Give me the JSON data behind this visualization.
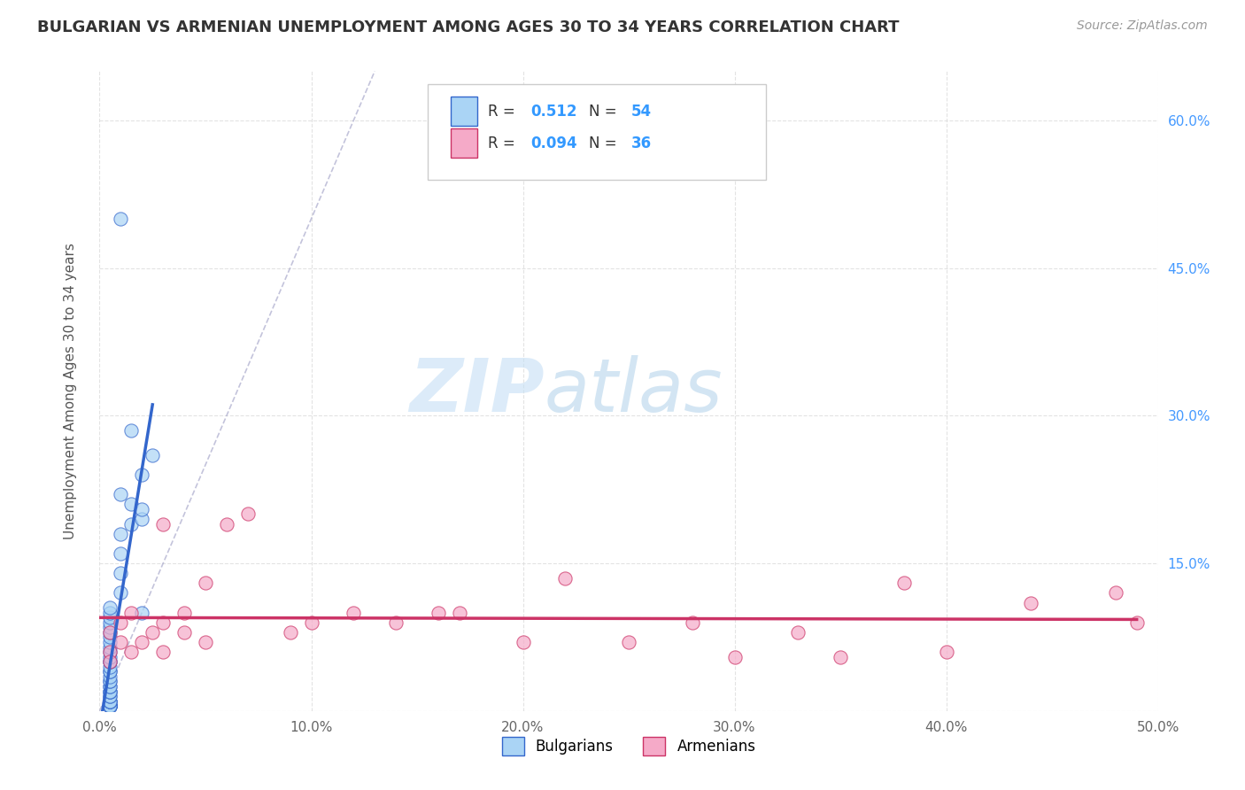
{
  "title": "BULGARIAN VS ARMENIAN UNEMPLOYMENT AMONG AGES 30 TO 34 YEARS CORRELATION CHART",
  "source": "Source: ZipAtlas.com",
  "ylabel": "Unemployment Among Ages 30 to 34 years",
  "bg_color": "#ffffff",
  "grid_color": "#dddddd",
  "grid_style": "--",
  "watermark_zip": "ZIP",
  "watermark_atlas": "atlas",
  "xlim": [
    0.0,
    0.5
  ],
  "ylim": [
    0.0,
    0.65
  ],
  "xticks": [
    0.0,
    0.1,
    0.2,
    0.3,
    0.4,
    0.5
  ],
  "xticklabels": [
    "0.0%",
    "10.0%",
    "20.0%",
    "30.0%",
    "40.0%",
    "50.0%"
  ],
  "yticks": [
    0.0,
    0.15,
    0.3,
    0.45,
    0.6
  ],
  "yticklabels_right": [
    "",
    "15.0%",
    "30.0%",
    "45.0%",
    "60.0%"
  ],
  "R_bulgarian": 0.512,
  "N_bulgarian": 54,
  "R_armenian": 0.094,
  "N_armenian": 36,
  "color_bulgarian": "#aad4f5",
  "color_armenian": "#f5aac8",
  "color_trend_bulgarian": "#3366cc",
  "color_trend_armenian": "#cc3366",
  "legend_label_bulgarian": "Bulgarians",
  "legend_label_armenian": "Armenians",
  "legend_text_color": "#333333",
  "legend_value_color": "#3399ff",
  "bulgarian_x": [
    0.005,
    0.005,
    0.005,
    0.005,
    0.005,
    0.005,
    0.005,
    0.005,
    0.005,
    0.005,
    0.005,
    0.005,
    0.005,
    0.005,
    0.005,
    0.005,
    0.005,
    0.005,
    0.005,
    0.005,
    0.005,
    0.005,
    0.005,
    0.005,
    0.005,
    0.005,
    0.005,
    0.005,
    0.005,
    0.005,
    0.005,
    0.005,
    0.005,
    0.005,
    0.005,
    0.005,
    0.005,
    0.005,
    0.005,
    0.005,
    0.01,
    0.01,
    0.01,
    0.01,
    0.015,
    0.015,
    0.02,
    0.02,
    0.02,
    0.025,
    0.01,
    0.015,
    0.02,
    0.01
  ],
  "bulgarian_y": [
    0.005,
    0.005,
    0.005,
    0.005,
    0.005,
    0.005,
    0.005,
    0.005,
    0.005,
    0.005,
    0.01,
    0.01,
    0.01,
    0.01,
    0.015,
    0.015,
    0.02,
    0.02,
    0.02,
    0.025,
    0.025,
    0.03,
    0.03,
    0.035,
    0.04,
    0.04,
    0.045,
    0.05,
    0.05,
    0.055,
    0.06,
    0.065,
    0.07,
    0.075,
    0.08,
    0.085,
    0.09,
    0.095,
    0.1,
    0.105,
    0.14,
    0.16,
    0.18,
    0.22,
    0.19,
    0.21,
    0.195,
    0.205,
    0.24,
    0.26,
    0.5,
    0.285,
    0.1,
    0.12
  ],
  "armenian_x": [
    0.005,
    0.005,
    0.005,
    0.01,
    0.01,
    0.015,
    0.015,
    0.02,
    0.025,
    0.03,
    0.03,
    0.04,
    0.04,
    0.05,
    0.06,
    0.07,
    0.09,
    0.1,
    0.12,
    0.14,
    0.16,
    0.17,
    0.2,
    0.22,
    0.25,
    0.28,
    0.3,
    0.33,
    0.35,
    0.38,
    0.4,
    0.44,
    0.48,
    0.49,
    0.03,
    0.05
  ],
  "armenian_y": [
    0.06,
    0.08,
    0.05,
    0.07,
    0.09,
    0.06,
    0.1,
    0.07,
    0.08,
    0.09,
    0.06,
    0.08,
    0.1,
    0.07,
    0.19,
    0.2,
    0.08,
    0.09,
    0.1,
    0.09,
    0.1,
    0.1,
    0.07,
    0.135,
    0.07,
    0.09,
    0.055,
    0.08,
    0.055,
    0.13,
    0.06,
    0.11,
    0.12,
    0.09,
    0.19,
    0.13
  ]
}
